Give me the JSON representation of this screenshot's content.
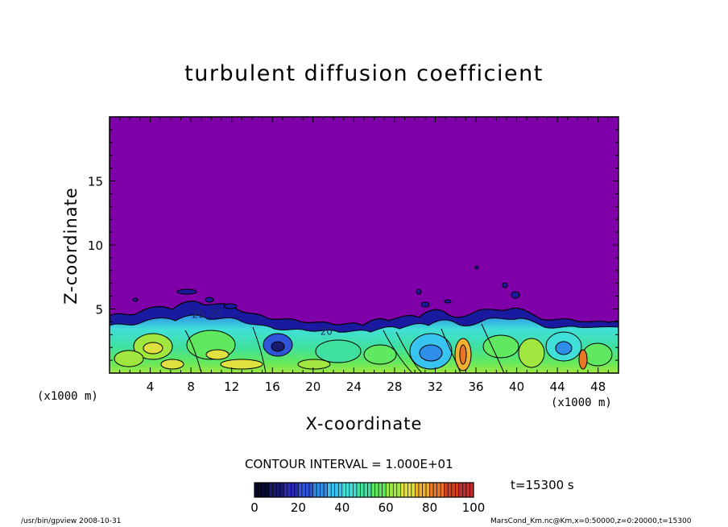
{
  "chart_data": {
    "type": "heatmap",
    "title": "turbulent diffusion coefficient",
    "xlabel": "X-coordinate",
    "ylabel": "Z-coordinate",
    "x_unit": "(x1000 m)",
    "xlim": [
      0,
      50
    ],
    "ylim": [
      0,
      20
    ],
    "x_ticks": [
      "4",
      "8",
      "12",
      "16",
      "20",
      "24",
      "28",
      "32",
      "36",
      "40",
      "44",
      "48"
    ],
    "y_ticks": [
      "5",
      "10",
      "15"
    ],
    "contour_interval": "CONTOUR INTERVAL = 1.000E+01",
    "contour_labels": [
      {
        "text": "20",
        "x": 8.7,
        "z": 4.3
      },
      {
        "text": "20",
        "x": 10.4,
        "z": 4.4
      },
      {
        "text": "20",
        "x": 21.3,
        "z": 3.0
      }
    ],
    "colorbar": {
      "min": 0,
      "max": 100,
      "tick_labels": [
        "0",
        "20",
        "40",
        "60",
        "80",
        "100"
      ],
      "colors": [
        "#0a0a30",
        "#1a1a6e",
        "#2a2ab0",
        "#2f55d8",
        "#2f8fe8",
        "#38c3f0",
        "#40e0d8",
        "#40e0a0",
        "#60e860",
        "#a0e840",
        "#e0e040",
        "#f0b030",
        "#e87828",
        "#d04020",
        "#c03030"
      ]
    },
    "background_color": "#7f00a8",
    "time": "t=15300 s",
    "footer_left": "/usr/bin/gpview   2008-10-31",
    "footer_right": "MarsCond_Km.nc@Km,x=0:50000,z=0:20000,t=15300"
  }
}
